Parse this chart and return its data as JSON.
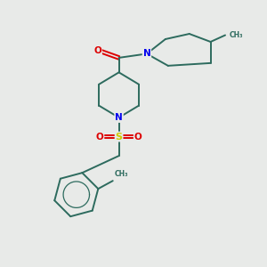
{
  "bg_color": "#e8eae8",
  "bond_color": "#2d6b5e",
  "N_color": "#0000ee",
  "O_color": "#dd0000",
  "S_color": "#cccc00",
  "bond_lw": 1.4,
  "figsize": [
    3.0,
    3.0
  ],
  "dpi": 100,
  "xlim": [
    0,
    10
  ],
  "ylim": [
    0,
    10
  ]
}
